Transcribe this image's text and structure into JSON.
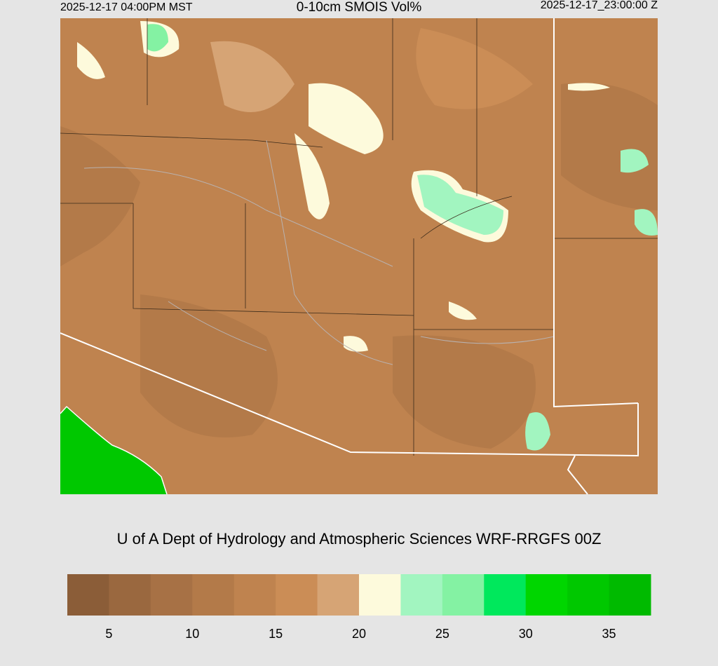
{
  "header": {
    "valid_local": "2025-12-17 04:00PM MST",
    "title": "0-10cm SMOIS Vol%",
    "valid_utc": "2025-12-17_23:00:00 Z"
  },
  "footer": {
    "credit": "U of A Dept of Hydrology and Atmospheric Sciences WRF-RRGFS 00Z"
  },
  "colorbar": {
    "lim": [
      2.5,
      37.5
    ],
    "colors": [
      "#8b5d38",
      "#9a683f",
      "#a77145",
      "#b37a49",
      "#bf834f",
      "#cb8d56",
      "#d6a475",
      "#fdfadc",
      "#a2f5c0",
      "#84f2a3",
      "#00e85c",
      "#00d600",
      "#00c800",
      "#00ba00"
    ],
    "ticks": [
      5,
      10,
      15,
      20,
      25,
      30,
      35
    ]
  }
}
